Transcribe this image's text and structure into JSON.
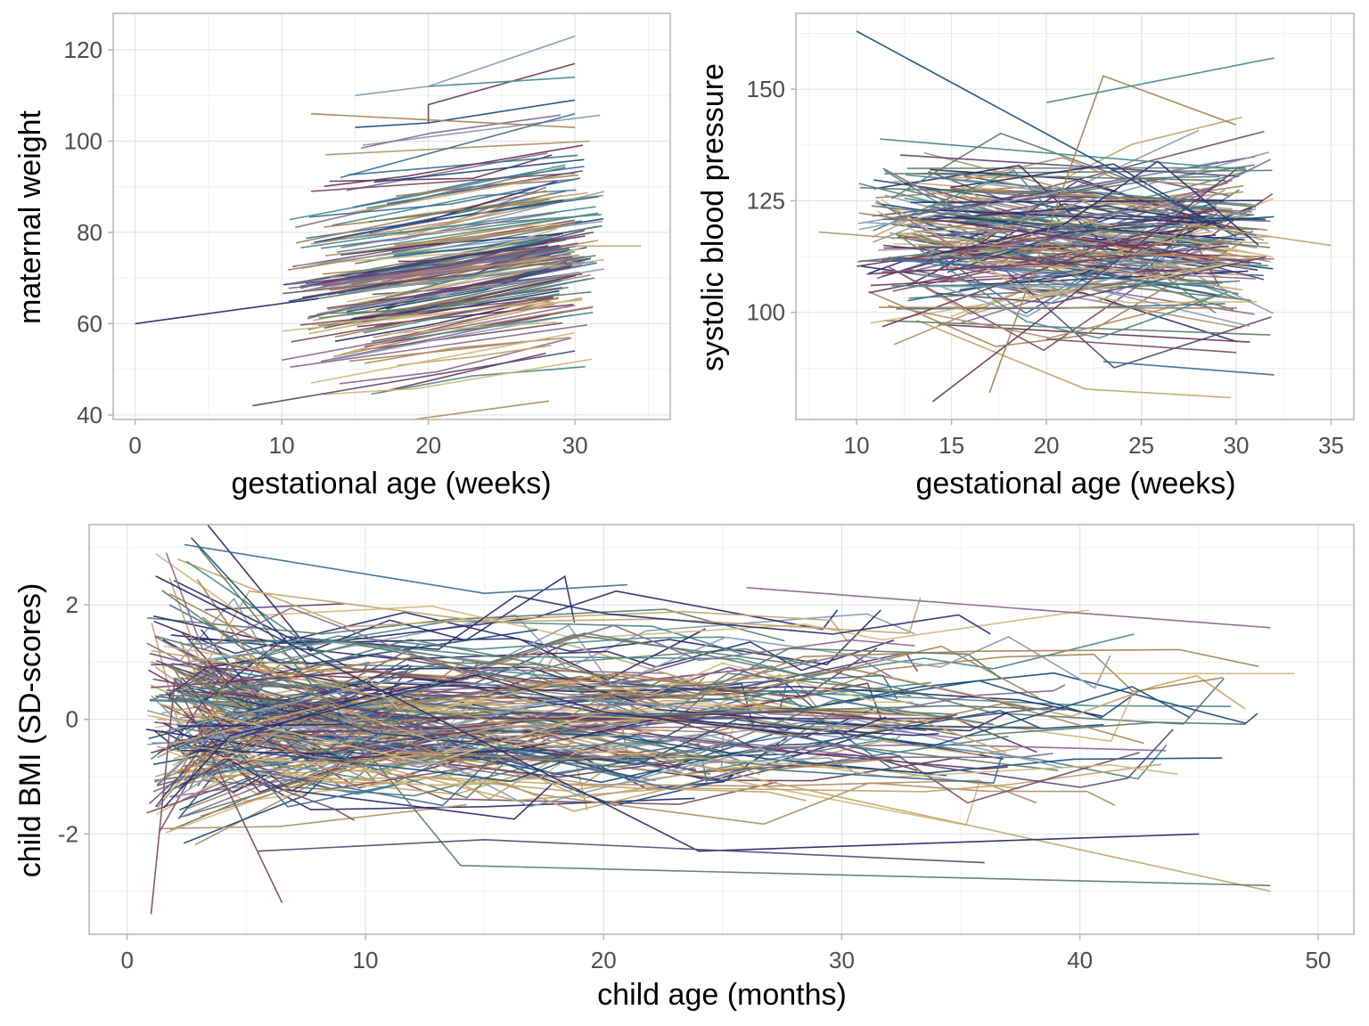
{
  "palette": [
    "#2b2d6e",
    "#1f4e79",
    "#3b6f96",
    "#5b4a7a",
    "#6b3a5a",
    "#7a5168",
    "#8a6a8f",
    "#a98354",
    "#c4a46a",
    "#d4b87c",
    "#4a8a8a",
    "#5f7c6e",
    "#8a9bb5",
    "#b08f6a"
  ],
  "chart_data": [
    {
      "id": "maternal-weight",
      "type": "line",
      "xlabel": "gestational age (weeks)",
      "ylabel": "maternal weight",
      "xlim": [
        -1.5,
        36.5
      ],
      "ylim": [
        39,
        128
      ],
      "xticks": [
        0,
        10,
        20,
        30
      ],
      "yticks": [
        40,
        60,
        80,
        100,
        120
      ],
      "grid": true,
      "n_trajectories": 160,
      "series": [
        {
          "x": [
            0,
            12.5
          ],
          "y": [
            60,
            65.5
          ]
        },
        {
          "x": [
            8,
            30
          ],
          "y": [
            42,
            54
          ]
        },
        {
          "x": [
            10,
            30
          ],
          "y": [
            52,
            64
          ]
        },
        {
          "x": [
            12,
            30
          ],
          "y": [
            47,
            58
          ]
        },
        {
          "x": [
            15,
            20,
            30
          ],
          "y": [
            110,
            112,
            123
          ]
        },
        {
          "x": [
            15,
            20,
            30
          ],
          "y": [
            103,
            104,
            109
          ]
        },
        {
          "x": [
            20,
            20,
            30
          ],
          "y": [
            104,
            108,
            117
          ]
        },
        {
          "x": [
            12,
            30
          ],
          "y": [
            106,
            103
          ]
        },
        {
          "x": [
            20,
            30
          ],
          "y": [
            112,
            114
          ]
        },
        {
          "x": [
            13,
            31
          ],
          "y": [
            97,
            100
          ]
        },
        {
          "x": [
            14,
            30
          ],
          "y": [
            92,
            106
          ]
        },
        {
          "x": [
            12,
            30
          ],
          "y": [
            89,
            93
          ]
        },
        {
          "x": [
            34.5,
            30
          ],
          "y": [
            77,
            77
          ]
        }
      ]
    },
    {
      "id": "systolic-blood-pressure",
      "type": "line",
      "xlabel": "gestational age (weeks)",
      "ylabel": "systolic blood pressure",
      "xlim": [
        6.8,
        36.2
      ],
      "ylim": [
        76,
        167
      ],
      "xticks": [
        10,
        15,
        20,
        25,
        30,
        35
      ],
      "yticks": [
        100,
        125,
        150
      ],
      "grid": true,
      "n_trajectories": 170,
      "series": [
        {
          "x": [
            10,
            30
          ],
          "y": [
            163,
            117
          ]
        },
        {
          "x": [
            14,
            30
          ],
          "y": [
            80,
            132
          ]
        },
        {
          "x": [
            17,
            23,
            30
          ],
          "y": [
            82,
            153,
            142
          ]
        },
        {
          "x": [
            20,
            32
          ],
          "y": [
            147,
            157
          ]
        },
        {
          "x": [
            8,
            20,
            30
          ],
          "y": [
            118,
            114,
            112
          ]
        },
        {
          "x": [
            23,
            32
          ],
          "y": [
            89,
            86
          ]
        },
        {
          "x": [
            20,
            30
          ],
          "y": [
            94,
            91
          ]
        },
        {
          "x": [
            27,
            35
          ],
          "y": [
            120,
            115
          ]
        }
      ]
    },
    {
      "id": "child-bmi",
      "type": "line",
      "xlabel": "child age (months)",
      "ylabel": "child BMI (SD-scores)",
      "xlim": [
        -1.6,
        51.5
      ],
      "ylim": [
        -3.75,
        3.4
      ],
      "xticks": [
        0,
        10,
        20,
        30,
        40,
        50
      ],
      "yticks": [
        -2,
        0,
        2
      ],
      "grid": true,
      "n_trajectories": 220,
      "series": [
        {
          "x": [
            2.4,
            15,
            21
          ],
          "y": [
            3.05,
            2.2,
            2.35
          ]
        },
        {
          "x": [
            1,
            2,
            6.5
          ],
          "y": [
            -3.4,
            0.7,
            -3.2
          ]
        },
        {
          "x": [
            1,
            4,
            48
          ],
          "y": [
            1.2,
            1.0,
            -3.0
          ]
        },
        {
          "x": [
            3,
            14,
            48
          ],
          "y": [
            3.0,
            -2.55,
            -2.9
          ]
        },
        {
          "x": [
            1.2,
            24,
            45
          ],
          "y": [
            2.5,
            -2.3,
            -2.0
          ]
        },
        {
          "x": [
            5.5,
            15,
            36
          ],
          "y": [
            -2.3,
            -2.1,
            -2.5
          ]
        },
        {
          "x": [
            26,
            48
          ],
          "y": [
            2.3,
            1.6
          ]
        },
        {
          "x": [
            40,
            49
          ],
          "y": [
            0.8,
            0.8
          ]
        }
      ]
    }
  ]
}
